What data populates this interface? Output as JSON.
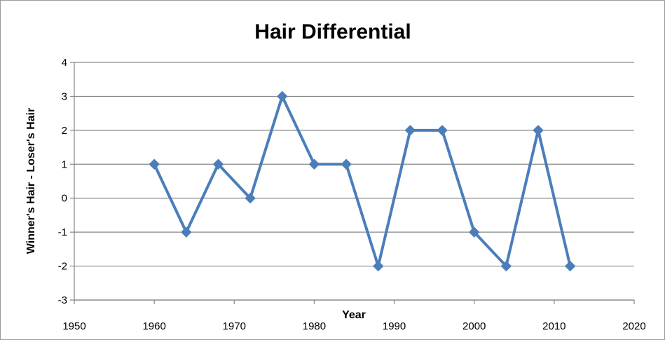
{
  "chart_data": {
    "type": "line",
    "title": "Hair Differential",
    "xlabel": "Year",
    "ylabel": "Winner's Hair - Loser's Hair",
    "xlim": [
      1950,
      2020
    ],
    "ylim": [
      -3,
      4
    ],
    "x_ticks": [
      1950,
      1960,
      1970,
      1980,
      1990,
      2000,
      2010,
      2020
    ],
    "y_ticks": [
      -3,
      -2,
      -1,
      0,
      1,
      2,
      3,
      4
    ],
    "grid": "horizontal",
    "legend": "none",
    "series": [
      {
        "x": [
          1960,
          1964,
          1968,
          1972,
          1976,
          1980,
          1984,
          1988,
          1992,
          1996,
          2000,
          2004,
          2008,
          2012
        ],
        "y": [
          1,
          -1,
          1,
          0,
          3,
          1,
          1,
          -2,
          2,
          2,
          -1,
          -2,
          2,
          -2
        ],
        "color": "#4a7ebb",
        "marker": "diamond"
      }
    ]
  }
}
